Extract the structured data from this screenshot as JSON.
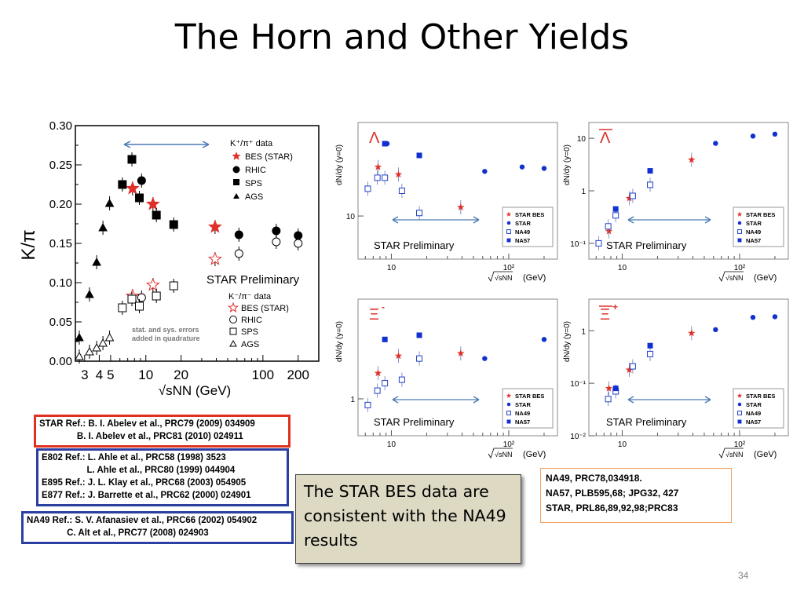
{
  "slide": {
    "title": "The Horn and Other Yields",
    "page_number": "34"
  },
  "main_chart": {
    "ylabel": "K/π",
    "xlabel": "√sNN (GeV)",
    "yticks": [
      "0.00",
      "0.05",
      "0.10",
      "0.15",
      "0.20",
      "0.25",
      "0.30"
    ],
    "xticks": [
      "3",
      "4",
      "5",
      "10",
      "20",
      "100",
      "200"
    ],
    "legend_pos": {
      "header": "K⁺/π⁺ data",
      "items": [
        "BES (STAR)",
        "RHIC",
        "SPS",
        "AGS"
      ]
    },
    "legend_neg": {
      "header": "K⁻/π⁻ data",
      "items": [
        "BES (STAR)",
        "RHIC",
        "SPS",
        "AGS"
      ]
    },
    "preliminary": "STAR Preliminary",
    "errors_note_1": "stat. and sys. errors",
    "errors_note_2": "added in quadrature",
    "colors": {
      "bes": "#e0302a",
      "data": "#000000",
      "arrow": "#4a7ab5"
    }
  },
  "chart_data": [
    {
      "type": "scatter",
      "xlabel": "√sNN (GeV)",
      "ylabel": "K/π",
      "xscale": "log",
      "xlim": [
        2.5,
        300
      ],
      "ylim": [
        0,
        0.3
      ],
      "series": [
        {
          "name": "BES (STAR)",
          "x": [
            7.7,
            11.5,
            39
          ],
          "y": [
            0.22,
            0.2,
            0.171
          ]
        },
        {
          "name": "RHIC",
          "x": [
            9.2,
            62.4,
            130,
            200
          ],
          "y": [
            0.23,
            0.161,
            0.166,
            0.16
          ]
        },
        {
          "name": "SPS",
          "x": [
            6.3,
            7.6,
            8.8,
            12.3,
            17.3
          ],
          "y": [
            0.225,
            0.257,
            0.208,
            0.186,
            0.174
          ]
        },
        {
          "name": "AGS",
          "x": [
            2.7,
            3.3,
            3.8,
            4.3,
            4.9
          ],
          "y": [
            0.03,
            0.085,
            0.126,
            0.17,
            0.201
          ]
        },
        {
          "name": "BES (STAR)",
          "x": [
            7.7,
            11.5,
            39
          ],
          "y": [
            0.083,
            0.097,
            0.13
          ]
        },
        {
          "name": "RHIC",
          "x": [
            9.2,
            62.4,
            130,
            200
          ],
          "y": [
            0.081,
            0.137,
            0.152,
            0.15
          ]
        },
        {
          "name": "SPS",
          "x": [
            6.3,
            7.6,
            8.8,
            12.3,
            17.3
          ],
          "y": [
            0.068,
            0.079,
            0.07,
            0.083,
            0.096
          ]
        },
        {
          "name": "AGS",
          "x": [
            2.7,
            3.3,
            3.8,
            4.3,
            4.9
          ],
          "y": [
            0.006,
            0.012,
            0.017,
            0.023,
            0.03
          ]
        }
      ]
    },
    {
      "type": "scatter",
      "title": "Λ",
      "ylabel": "dN/dy (y=0)",
      "xlabel": "√sNN (GeV)",
      "xscale": "log",
      "yscale": "log",
      "series": [
        {
          "name": "STAR BES",
          "x": [
            7.7,
            11.5,
            39
          ],
          "y": [
            22,
            19.5,
            11.5
          ]
        },
        {
          "name": "STAR",
          "x": [
            9.2,
            62.4,
            130,
            200
          ],
          "y": [
            32,
            20.5,
            22,
            21.5
          ]
        },
        {
          "name": "NA49",
          "x": [
            6.3,
            7.6,
            8.8,
            12.3,
            17.3
          ],
          "y": [
            15.5,
            18.5,
            18.5,
            15,
            10.5
          ]
        },
        {
          "name": "NA57",
          "x": [
            8.8,
            17.3
          ],
          "y": [
            32,
            26.5
          ]
        }
      ]
    },
    {
      "type": "scatter",
      "title": "Λ̄",
      "ylabel": "dN/dy (y=0)",
      "xlabel": "√sNN (GeV)",
      "xscale": "log",
      "yscale": "log",
      "series": [
        {
          "name": "STAR BES",
          "x": [
            7.7,
            11.5,
            39
          ],
          "y": [
            0.17,
            0.72,
            3.9
          ]
        },
        {
          "name": "STAR",
          "x": [
            62.4,
            130,
            200
          ],
          "y": [
            8.0,
            11.0,
            12.0
          ]
        },
        {
          "name": "NA49",
          "x": [
            6.3,
            7.6,
            8.8,
            12.3,
            17.3
          ],
          "y": [
            0.1,
            0.21,
            0.34,
            0.8,
            1.3
          ]
        },
        {
          "name": "NA57",
          "x": [
            8.8,
            17.3
          ],
          "y": [
            0.45,
            2.4
          ]
        }
      ]
    },
    {
      "type": "scatter",
      "title": "Ξ⁻",
      "ylabel": "dN/dy (y=0)",
      "xlabel": "√sNN (GeV)",
      "xscale": "log",
      "yscale": "log",
      "series": [
        {
          "name": "STAR BES",
          "x": [
            7.7,
            11.5,
            39
          ],
          "y": [
            1.35,
            1.65,
            1.7
          ]
        },
        {
          "name": "STAR",
          "x": [
            62.4,
            200
          ],
          "y": [
            1.6,
            2.0
          ]
        },
        {
          "name": "NA49",
          "x": [
            6.3,
            7.6,
            8.8,
            12.3,
            17.3
          ],
          "y": [
            0.93,
            1.1,
            1.2,
            1.25,
            1.6
          ]
        },
        {
          "name": "NA57",
          "x": [
            8.8,
            17.3
          ],
          "y": [
            2.0,
            2.1
          ]
        }
      ]
    },
    {
      "type": "scatter",
      "title": "Ξ̄⁺",
      "ylabel": "dN/dy (y=0)",
      "xlabel": "√sNN (GeV)",
      "xscale": "log",
      "yscale": "log",
      "series": [
        {
          "name": "STAR BES",
          "x": [
            7.7,
            11.5,
            39
          ],
          "y": [
            0.08,
            0.18,
            0.9
          ]
        },
        {
          "name": "STAR",
          "x": [
            62.4,
            130,
            200
          ],
          "y": [
            1.05,
            1.8,
            1.85
          ]
        },
        {
          "name": "NA49",
          "x": [
            7.6,
            8.8,
            12.3,
            17.3
          ],
          "y": [
            0.05,
            0.07,
            0.21,
            0.36
          ]
        },
        {
          "name": "NA57",
          "x": [
            8.8,
            17.3
          ],
          "y": [
            0.08,
            0.52
          ]
        }
      ]
    }
  ],
  "yield_panels": {
    "ylabel": "dN/dy (y=0)",
    "xlabel_sqrt": "√sNN",
    "xlabel_unit": "(GeV)",
    "tick_10": "10",
    "tick_100": "10²",
    "legend": [
      "STAR BES",
      "STAR",
      "NA49",
      "NA57"
    ],
    "preliminary": "STAR Preliminary",
    "lambda": {
      "label": "Λ",
      "yticks": [
        "10"
      ]
    },
    "antilambda": {
      "label": "Λ",
      "yticks": [
        "10⁻¹",
        "1",
        "10"
      ]
    },
    "xi": {
      "label": "Ξ",
      "sup": "-",
      "yticks": [
        "1"
      ]
    },
    "antixi": {
      "label": "Ξ",
      "sup": "+",
      "yticks": [
        "10⁻²",
        "10⁻¹",
        "1"
      ]
    }
  },
  "refs": {
    "star": "STAR Ref.: B. I. Abelev et al., PRC79 (2009) 034909\n               B. I. Abelev et al., PRC81 (2010) 024911",
    "ags": "E802 Ref.: L. Ahle et al., PRC58 (1998) 3523\n                  L. Ahle et al., PRC80 (1999) 044904\nE895 Ref.: J. L. Klay et al., PRC68 (2003) 054905\nE877 Ref.: J. Barrette et al., PRC62 (2000) 024901",
    "na49": "NA49 Ref.: S. V. Afanasiev et al., PRC66 (2002) 054902\n                C. Alt et al., PRC77 (2008) 024903"
  },
  "note_text": " The STAR BES data are consistent with the NA49 results",
  "citations": "NA49, PRC78,034918.\nNA57, PLB595,68; JPG32, 427\nSTAR, PRL86,89,92,98;PRC83"
}
